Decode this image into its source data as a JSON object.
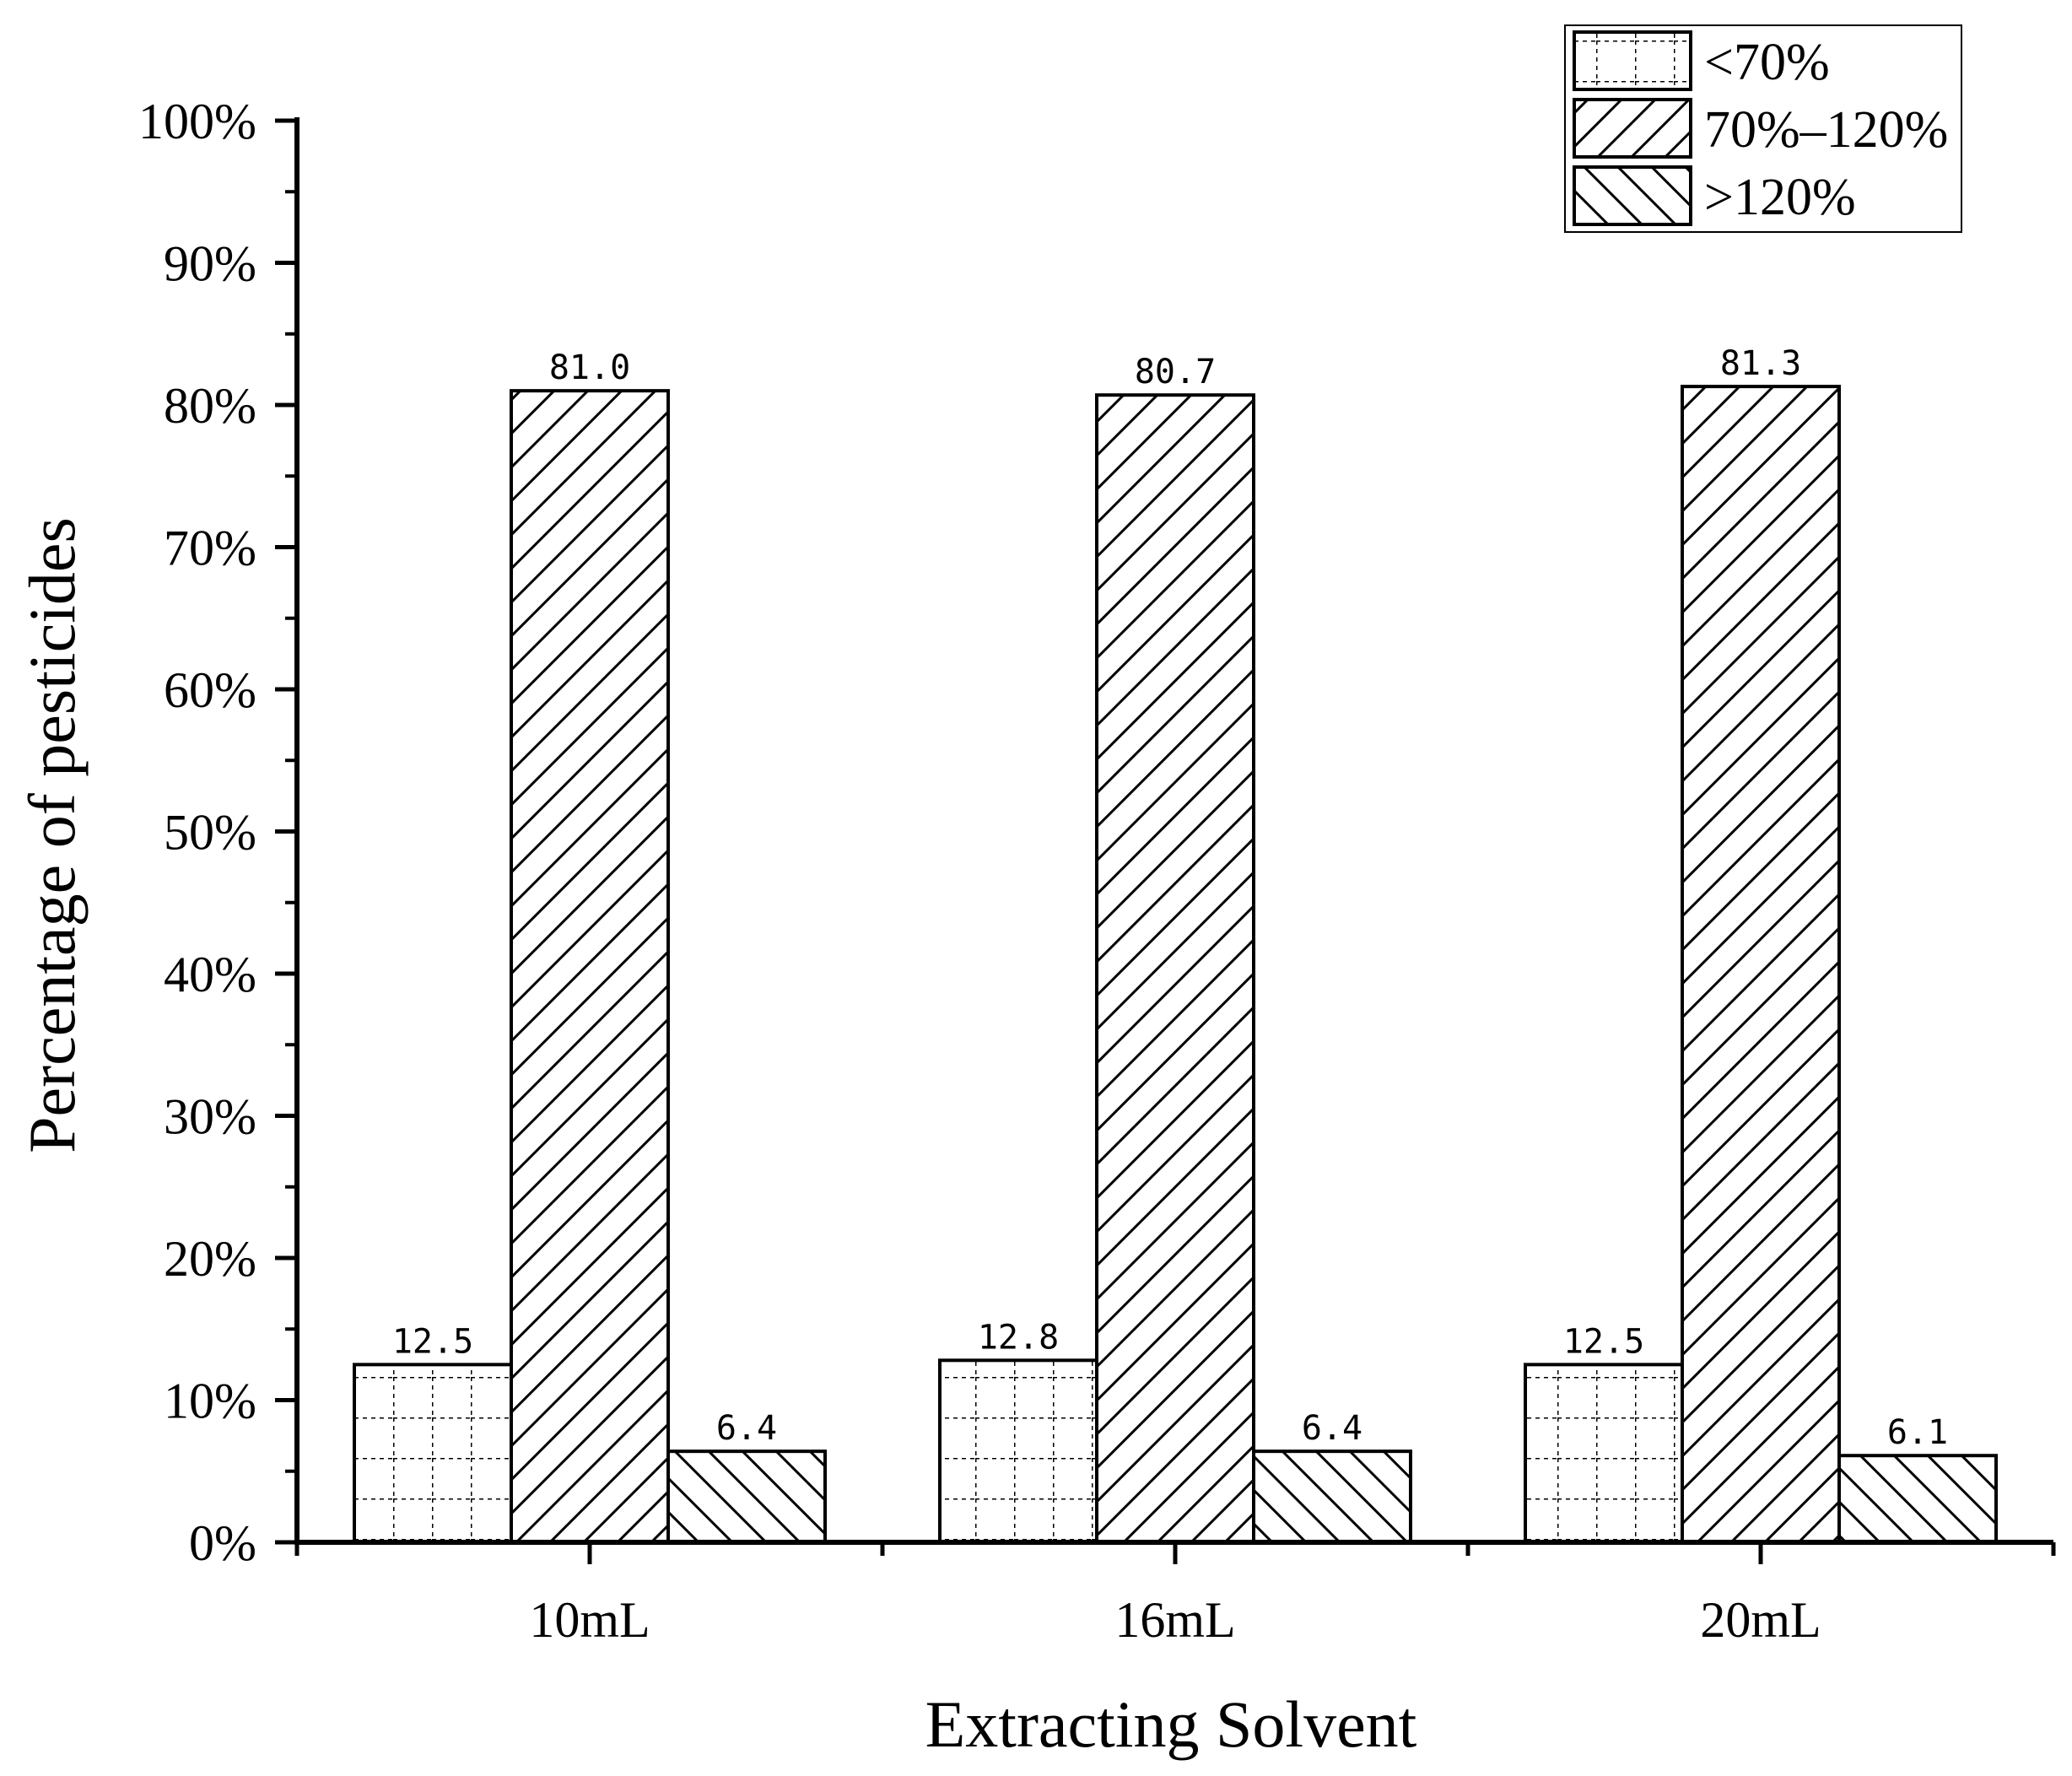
{
  "chart_data": {
    "type": "bar",
    "title": "",
    "xlabel": "Extracting Solvent",
    "ylabel": "Percentage of pesticides",
    "categories": [
      "10mL",
      "16mL",
      "20mL"
    ],
    "ylim": [
      0,
      100
    ],
    "yticks": [
      "0%",
      "10%",
      "20%",
      "30%",
      "40%",
      "50%",
      "60%",
      "70%",
      "80%",
      "90%",
      "100%"
    ],
    "series": [
      {
        "name": "<70%",
        "pattern": "grid",
        "values": [
          12.5,
          12.8,
          12.5
        ],
        "labels": [
          "12.5",
          "12.8",
          "12.5"
        ]
      },
      {
        "name": "70%–120%",
        "pattern": "diag-up",
        "values": [
          81.0,
          80.7,
          81.3
        ],
        "labels": [
          "81.0",
          "80.7",
          "81.3"
        ]
      },
      {
        "name": ">120%",
        "pattern": "diag-down",
        "values": [
          6.4,
          6.4,
          6.1
        ],
        "labels": [
          "6.4",
          "6.4",
          "6.1"
        ]
      }
    ],
    "legend": [
      "<70%",
      "70%–120%",
      ">120%"
    ],
    "legend_position": "top-right",
    "grid": false
  },
  "colors": {
    "ink": "#000000",
    "background": "#ffffff"
  }
}
